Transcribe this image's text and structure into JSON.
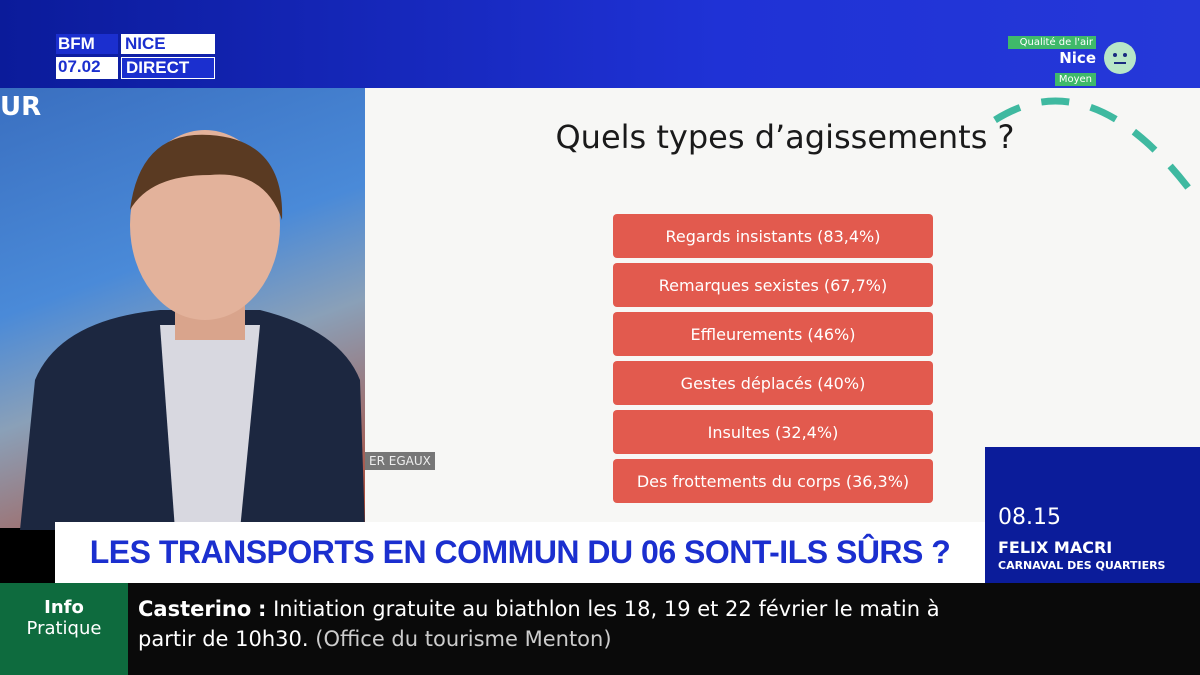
{
  "logo": {
    "brand": "BFM",
    "city": "NICE",
    "date": "07.02",
    "live": "DIRECT"
  },
  "air_quality": {
    "title": "Qualité de l'air",
    "city": "Nice",
    "level": "Moyen"
  },
  "background_text": "UR",
  "slide": {
    "title": "Quels types d’agissements ?",
    "items": [
      "Regards insistants (83,4%)",
      "Remarques sexistes (67,7%)",
      "Effleurements (46%)",
      "Gestes déplacés (40%)",
      "Insultes (32,4%)",
      "Des frottements du corps (36,3%)"
    ],
    "caption": "ER EGAUX"
  },
  "headline": "LES TRANSPORTS EN COMMUN DU 06 SONT-ILS SÛRS ?",
  "program": {
    "time": "08.15",
    "host": "FELIX MACRI",
    "show": "CARNAVAL DES QUARTIERS"
  },
  "ticker": {
    "label_top": "Info",
    "label_bottom": "Pratique",
    "place": "Casterino",
    "separator": ":",
    "text": "Initiation gratuite au biathlon les 18, 19 et 22 février le matin à",
    "text_2": "partir de 10h30.",
    "source": "(Office du tourisme Menton)"
  }
}
